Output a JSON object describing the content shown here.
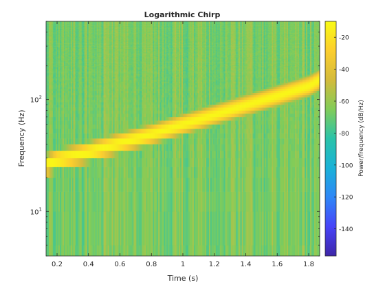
{
  "chart_data": {
    "type": "heatmap",
    "title": "Logarithmic Chirp",
    "xlabel": "Time (s)",
    "ylabel": "Frequency (Hz)",
    "xlim": [
      0.13,
      1.87
    ],
    "ylim": [
      4,
      500
    ],
    "yscale": "log",
    "x_ticks": [
      "0.2",
      "0.4",
      "0.6",
      "0.8",
      "1",
      "1.2",
      "1.4",
      "1.6",
      "1.8"
    ],
    "x_tick_values": [
      0.2,
      0.4,
      0.6,
      0.8,
      1.0,
      1.2,
      1.4,
      1.6,
      1.8
    ],
    "y_ticks": [
      {
        "value": 10,
        "base": "10",
        "exp": "1"
      },
      {
        "value": 100,
        "base": "10",
        "exp": "2"
      }
    ],
    "colorbar": {
      "label": "Power/frequency (dB/Hz)",
      "range": [
        -157,
        -10
      ],
      "ticks": [
        "-20",
        "-40",
        "-60",
        "-80",
        "-100",
        "-120",
        "-140"
      ],
      "tick_values": [
        -20,
        -40,
        -60,
        -80,
        -100,
        -120,
        -140
      ]
    },
    "ridge": {
      "description": "instantaneous frequency of the chirp (Hz) vs time (s)",
      "time": [
        0.13,
        0.2,
        0.4,
        0.6,
        0.8,
        1.0,
        1.2,
        1.4,
        1.6,
        1.8,
        1.87
      ],
      "frequency": [
        26,
        29,
        34,
        41,
        49,
        60,
        73,
        89,
        108,
        132,
        150
      ],
      "peak_db": -12
    },
    "background_db": [
      -75,
      -55
    ],
    "colormap": [
      "#3e26a8",
      "#4743f8",
      "#2e87f7",
      "#1ab2d8",
      "#2ac3a9",
      "#81cc59",
      "#d4bb3c",
      "#fcce2e",
      "#f9fb15"
    ],
    "grid": false
  }
}
